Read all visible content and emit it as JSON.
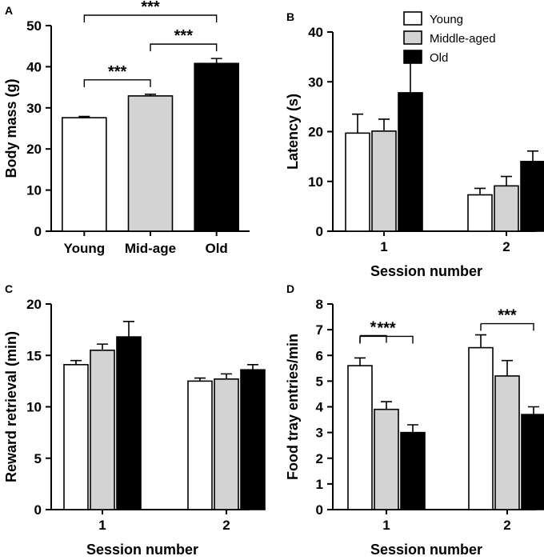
{
  "groups": [
    {
      "name": "Young",
      "color": "#ffffff"
    },
    {
      "name": "Middle-aged",
      "color": "#d3d3d3"
    },
    {
      "name": "Old",
      "color": "#000000"
    }
  ],
  "legend": {
    "items": [
      "Young",
      "Middle-aged",
      "Old"
    ],
    "placement": "top-right of panel B"
  },
  "chart_data": [
    {
      "id": "A",
      "panel_label": "A",
      "type": "bar",
      "categories": [
        "Young",
        "Mid-age",
        "Old"
      ],
      "values": [
        27.6,
        32.9,
        40.8
      ],
      "errors": [
        0.3,
        0.4,
        1.2
      ],
      "xlabel": "",
      "ylabel": "Body mass (g)",
      "ylim": [
        0,
        50
      ],
      "yticks": [
        0,
        10,
        20,
        30,
        40,
        50
      ],
      "significance": [
        {
          "from": 0,
          "to": 1,
          "label": "***"
        },
        {
          "from": 1,
          "to": 2,
          "label": "***"
        },
        {
          "from": 0,
          "to": 2,
          "label": "***"
        }
      ]
    },
    {
      "id": "B",
      "panel_label": "B",
      "type": "bar",
      "categories": [
        "1",
        "2"
      ],
      "series": [
        {
          "name": "Young",
          "values": [
            19.7,
            7.3
          ],
          "errors": [
            3.8,
            1.3
          ]
        },
        {
          "name": "Middle-aged",
          "values": [
            20.1,
            9.1
          ],
          "errors": [
            2.4,
            1.9
          ]
        },
        {
          "name": "Old",
          "values": [
            27.8,
            14.0
          ],
          "errors": [
            6.1,
            2.1
          ]
        }
      ],
      "xlabel": "Session number",
      "ylabel": "Latency (s)",
      "ylim": [
        0,
        40
      ],
      "yticks": [
        0,
        10,
        20,
        30,
        40
      ],
      "significance": []
    },
    {
      "id": "C",
      "panel_label": "C",
      "type": "bar",
      "categories": [
        "1",
        "2"
      ],
      "series": [
        {
          "name": "Young",
          "values": [
            14.1,
            12.5
          ],
          "errors": [
            0.4,
            0.3
          ]
        },
        {
          "name": "Middle-aged",
          "values": [
            15.5,
            12.7
          ],
          "errors": [
            0.6,
            0.5
          ]
        },
        {
          "name": "Old",
          "values": [
            16.8,
            13.6
          ],
          "errors": [
            1.5,
            0.5
          ]
        }
      ],
      "xlabel": "Session number",
      "ylabel": "Reward retrieval (min)",
      "ylim": [
        0,
        20
      ],
      "yticks": [
        0,
        5,
        10,
        15,
        20
      ],
      "significance": []
    },
    {
      "id": "D",
      "panel_label": "D",
      "type": "bar",
      "categories": [
        "1",
        "2"
      ],
      "series": [
        {
          "name": "Young",
          "values": [
            5.6,
            6.3
          ],
          "errors": [
            0.3,
            0.5
          ]
        },
        {
          "name": "Middle-aged",
          "values": [
            3.9,
            5.2
          ],
          "errors": [
            0.3,
            0.6
          ]
        },
        {
          "name": "Old",
          "values": [
            3.0,
            3.7
          ],
          "errors": [
            0.3,
            0.3
          ]
        }
      ],
      "xlabel": "Session number",
      "ylabel": "Food tray entries/min",
      "ylim": [
        0,
        8
      ],
      "yticks": [
        0,
        1,
        2,
        3,
        4,
        5,
        6,
        7,
        8
      ],
      "significance": [
        {
          "category": 0,
          "from": 0,
          "to": 1,
          "label": "*"
        },
        {
          "category": 0,
          "from": 0,
          "to": 2,
          "label": "***"
        },
        {
          "category": 1,
          "from": 0,
          "to": 2,
          "label": "***"
        }
      ]
    }
  ]
}
